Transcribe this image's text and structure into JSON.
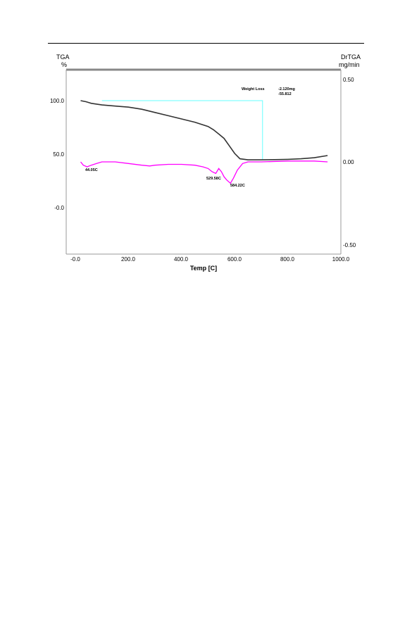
{
  "chart_data": {
    "type": "line",
    "xlabel": "Temp  [C]",
    "xlim": [
      -30,
      1000
    ],
    "x_ticks": [
      "-0.0",
      "200.0",
      "400.0",
      "600.0",
      "800.0",
      "1000.0"
    ],
    "y_left": {
      "label": "TGA",
      "unit": "%",
      "ylim": [
        -50,
        130
      ],
      "ticks": [
        "100.0",
        "50.0",
        "-0.0"
      ]
    },
    "y_right": {
      "label": "DrTGA",
      "unit": "mg/min",
      "ylim": [
        -0.55,
        0.55
      ],
      "ticks": [
        "0.50",
        "0.00",
        "-0.50"
      ]
    },
    "series": [
      {
        "axis": "left",
        "color": "#333333",
        "x": [
          20,
          40,
          60,
          100,
          150,
          200,
          250,
          300,
          350,
          400,
          450,
          500,
          520,
          540,
          560,
          580,
          600,
          620,
          650,
          700,
          750,
          800,
          850,
          900,
          950
        ],
        "y": [
          100,
          99,
          97.5,
          96,
          95,
          94,
          92,
          89,
          86,
          83,
          80,
          76,
          73,
          69,
          65,
          58,
          51,
          46,
          45,
          45,
          45.2,
          45.5,
          46,
          47,
          49
        ]
      },
      {
        "axis": "right",
        "color": "#ff00ff",
        "x": [
          20,
          30,
          44,
          60,
          80,
          100,
          150,
          200,
          250,
          280,
          300,
          350,
          400,
          450,
          480,
          500,
          515,
          529,
          540,
          550,
          560,
          570,
          584,
          595,
          610,
          630,
          650,
          700,
          800,
          900,
          950
        ],
        "y": [
          0.0,
          -0.02,
          -0.03,
          -0.02,
          -0.01,
          0.0,
          0.0,
          -0.01,
          -0.02,
          -0.025,
          -0.02,
          -0.015,
          -0.015,
          -0.02,
          -0.03,
          -0.04,
          -0.06,
          -0.07,
          -0.04,
          -0.06,
          -0.09,
          -0.11,
          -0.13,
          -0.1,
          -0.05,
          -0.01,
          0.0,
          0.0,
          0.005,
          0.005,
          0.0
        ]
      }
    ],
    "annotations": {
      "peak_1": "44.05C",
      "peak_2": "529.58C",
      "peak_3": "584.22C",
      "weight_loss_label": "Weight Loss",
      "weight_loss_mg": "-2.120mg",
      "weight_loss_pct": "-55.812"
    },
    "step_marker": {
      "color": "#66ffff",
      "x_start": 100,
      "x_end": 705,
      "y_top": 100,
      "y_bottom": 45
    }
  }
}
